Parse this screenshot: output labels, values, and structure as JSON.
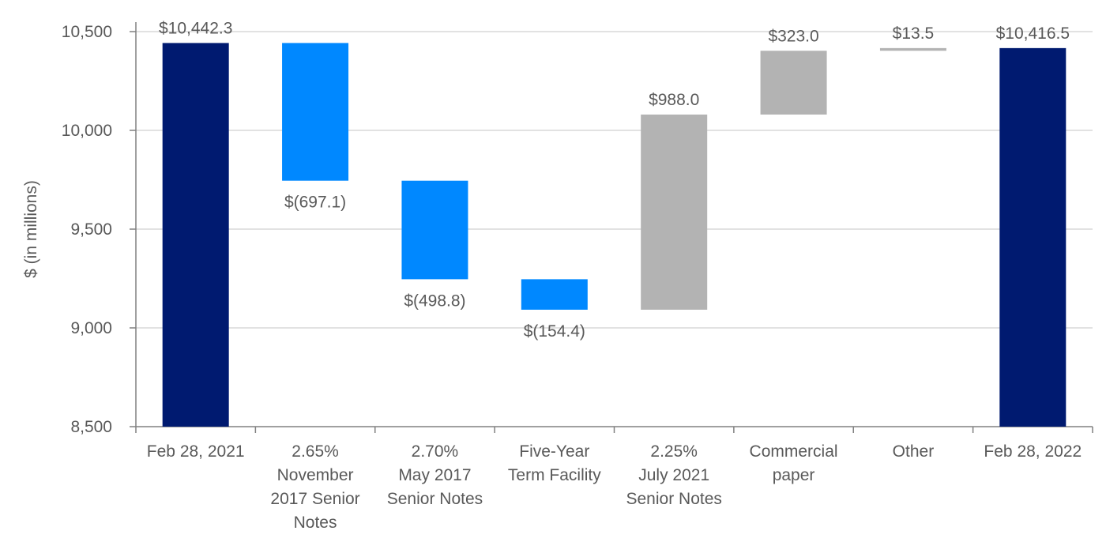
{
  "chart_data": {
    "type": "waterfall",
    "title": "",
    "xlabel": "",
    "ylabel": "$ (in millions)",
    "ylim": [
      8500,
      10500
    ],
    "yticks": [
      8500,
      9000,
      9500,
      10000,
      10500
    ],
    "ytick_labels": [
      "8,500",
      "9,000",
      "9,500",
      "10,000",
      "10,500"
    ],
    "grid": true,
    "colors": {
      "total": "#001A70",
      "decrease": "#0088FF",
      "increase": "#B3B3B3",
      "grid": "#D9D9D9",
      "axis": "#808080",
      "text": "#595959"
    },
    "bars": [
      {
        "category": [
          "Feb 28, 2021"
        ],
        "kind": "total",
        "start": 8500,
        "end": 10442.3,
        "label": "$10,442.3",
        "label_pos": "above"
      },
      {
        "category": [
          "2.65%",
          "November",
          "2017 Senior",
          "Notes"
        ],
        "kind": "decrease",
        "start": 10442.3,
        "end": 9745.2,
        "label": "$(697.1)",
        "label_pos": "below"
      },
      {
        "category": [
          "2.70%",
          "May 2017",
          "Senior Notes"
        ],
        "kind": "decrease",
        "start": 9745.2,
        "end": 9246.4,
        "label": "$(498.8)",
        "label_pos": "below"
      },
      {
        "category": [
          "Five-Year",
          "Term Facility"
        ],
        "kind": "decrease",
        "start": 9246.4,
        "end": 9092.0,
        "label": "$(154.4)",
        "label_pos": "below"
      },
      {
        "category": [
          "2.25%",
          "July 2021",
          "Senior Notes"
        ],
        "kind": "increase",
        "start": 9092.0,
        "end": 10080.0,
        "label": "$988.0",
        "label_pos": "above"
      },
      {
        "category": [
          "Commercial",
          "paper"
        ],
        "kind": "increase",
        "start": 10080.0,
        "end": 10403.0,
        "label": "$323.0",
        "label_pos": "above"
      },
      {
        "category": [
          "Other"
        ],
        "kind": "increase",
        "start": 10403.0,
        "end": 10416.5,
        "label": "$13.5",
        "label_pos": "above"
      },
      {
        "category": [
          "Feb 28, 2022"
        ],
        "kind": "total",
        "start": 8500,
        "end": 10416.5,
        "label": "$10,416.5",
        "label_pos": "above"
      }
    ]
  }
}
